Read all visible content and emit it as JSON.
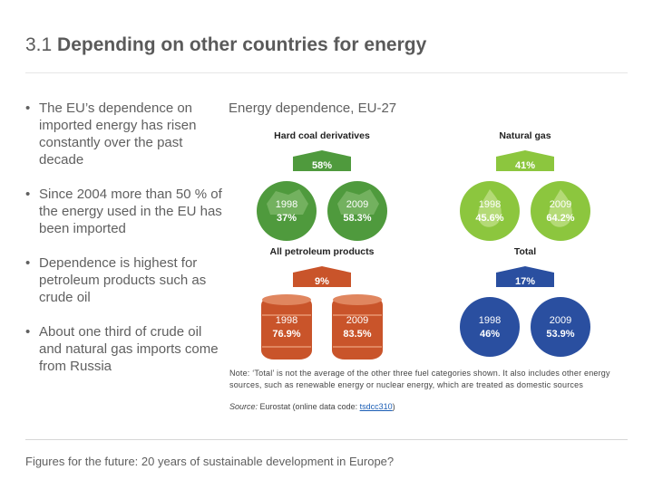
{
  "slide": {
    "title_number": "3.1",
    "title_text": "Depending on other countries for energy",
    "bullets": [
      "The EU’s dependence on imported energy has risen constantly over the past decade",
      "Since 2004 more than 50 % of the energy used in the EU has been imported",
      "Dependence is highest for petroleum products such as crude oil",
      "About one third of crude oil and natural gas imports come from Russia"
    ],
    "bullet_marker": "•",
    "footer": "Figures for the future: 20 years of sustainable development in Europe?"
  },
  "figure": {
    "heading": "Energy dependence, EU-27",
    "panels": [
      {
        "label": "Hard coal derivatives",
        "increase": "58%",
        "icon": "coal-icon",
        "color": "#4f9a3d",
        "color_light": "#7fb86b",
        "values": [
          {
            "year": "1998",
            "value": "37%"
          },
          {
            "year": "2009",
            "value": "58.3%"
          }
        ]
      },
      {
        "label": "Natural gas",
        "increase": "41%",
        "icon": "flame-icon",
        "color": "#8cc63e",
        "color_light": "#b8dc7c",
        "values": [
          {
            "year": "1998",
            "value": "45.6%"
          },
          {
            "year": "2009",
            "value": "64.2%"
          }
        ]
      },
      {
        "label": "All petroleum products",
        "increase": "9%",
        "icon": "oil-barrel-icon",
        "color": "#c9542a",
        "color_light": "#e0865f",
        "values": [
          {
            "year": "1998",
            "value": "76.9%"
          },
          {
            "year": "2009",
            "value": "83.5%"
          }
        ]
      },
      {
        "label": "Total",
        "increase": "17%",
        "icon": "total-icon",
        "color": "#2a4fa0",
        "color_light": "#5a78bd",
        "values": [
          {
            "year": "1998",
            "value": "46%"
          },
          {
            "year": "2009",
            "value": "53.9%"
          }
        ]
      }
    ],
    "note_label": "Note:",
    "note_text": "‘Total’ is not the average of the other three fuel categories shown. It also includes other energy sources, such as renewable energy or nuclear energy, which are treated as domestic sources",
    "source_label": "Source:",
    "source_text": "Eurostat (online data code: ",
    "source_link": "tsdcc310",
    "source_end": ")"
  }
}
